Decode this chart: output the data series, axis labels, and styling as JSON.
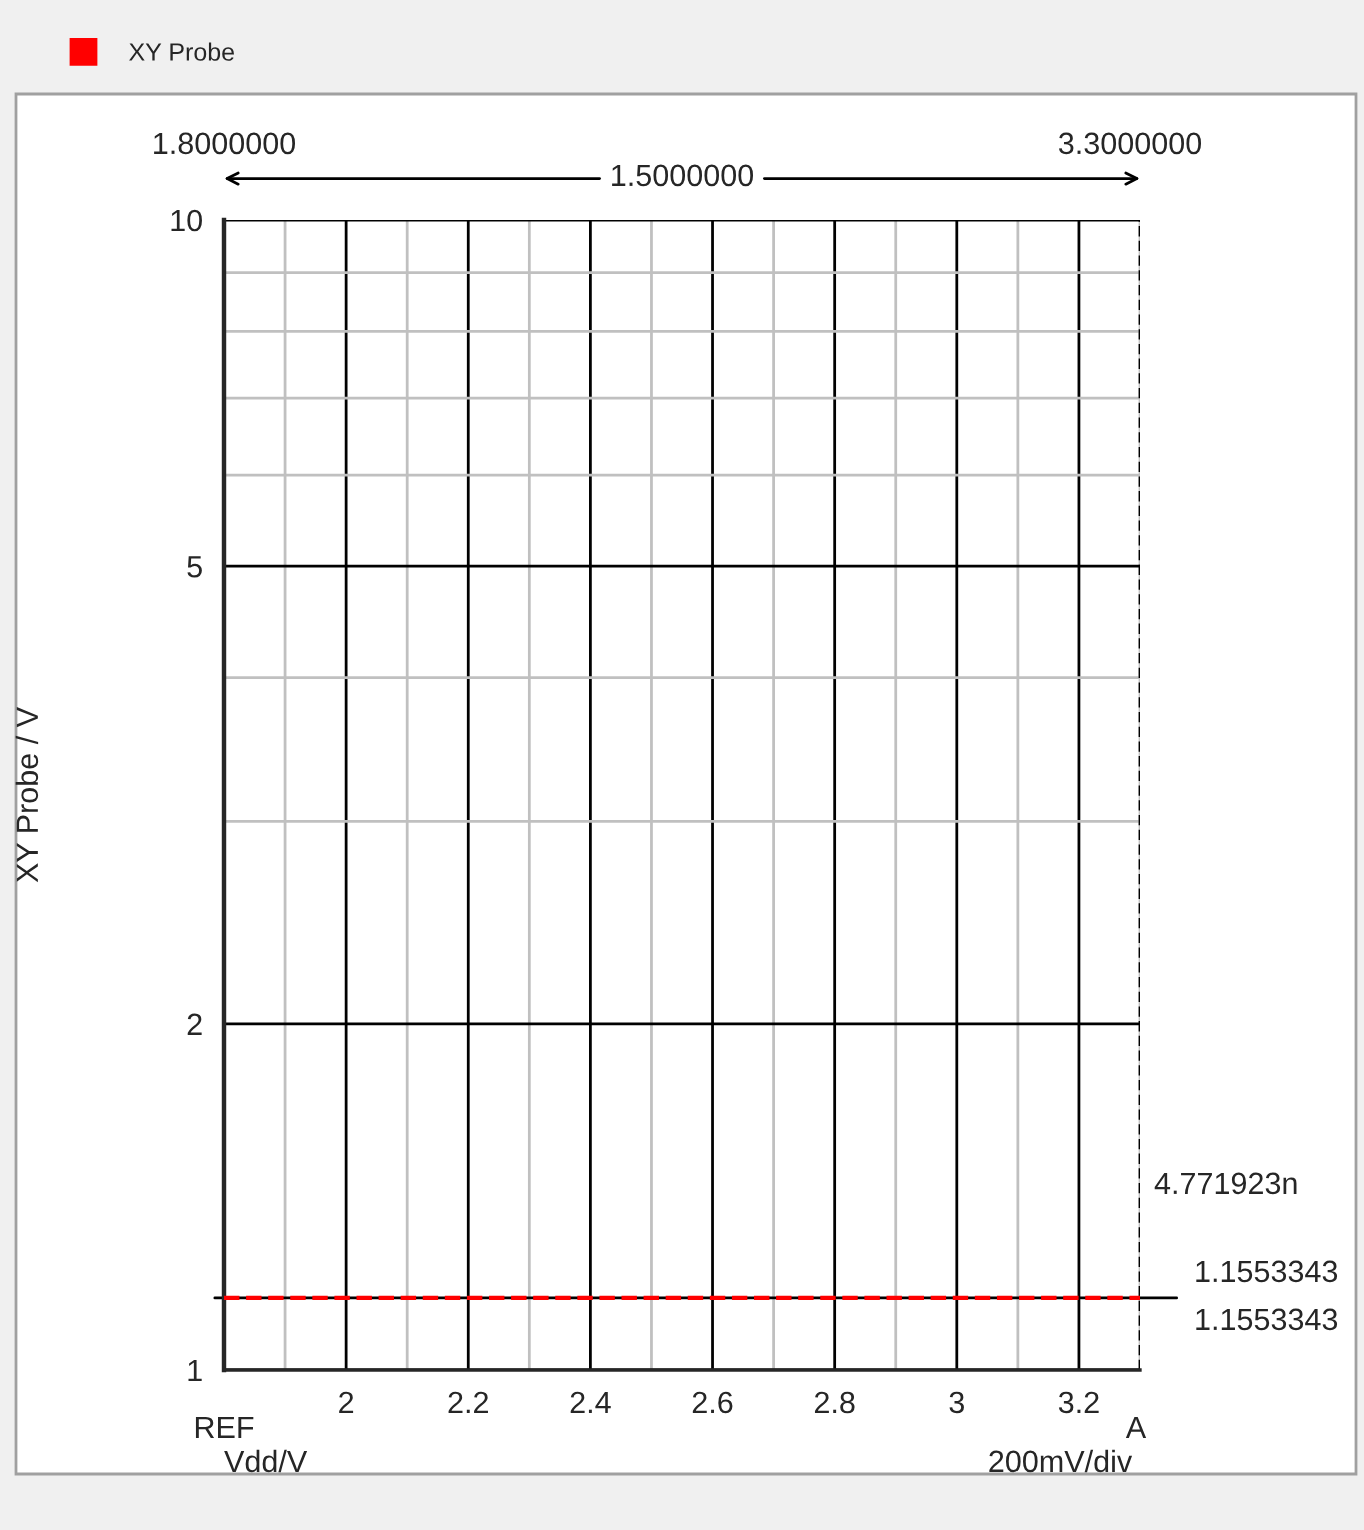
{
  "chart_data": {
    "type": "line",
    "xlabel": "Vdd/V",
    "ylabel": "XY Probe / V",
    "x": [
      1.8,
      3.3
    ],
    "series": [
      {
        "name": "XY Probe",
        "color": "#ff0000",
        "values": [
          1.1553343,
          1.1553343
        ]
      }
    ],
    "xlim": [
      1.8,
      3.3
    ],
    "xticks": [
      2,
      2.2,
      2.4,
      2.6,
      2.8,
      3,
      3.2
    ],
    "ylim": [
      1,
      10
    ],
    "yticks": [
      1,
      2,
      5,
      10
    ],
    "log": true,
    "grid": true,
    "legend": "top left",
    "line_style": "dashed",
    "ref_lines": [
      {
        "axis": "x",
        "value": 3.3,
        "line_style": "dashed",
        "color": "#000000"
      },
      {
        "axis": "y",
        "value": 1.1553343,
        "color": "#000000"
      }
    ],
    "annotations": [
      "1.8000000",
      "3.3000000",
      "1.5000000",
      "4.771923n",
      "1.1553343",
      "1.1553343",
      "REF",
      "A",
      "200mV/div"
    ]
  }
}
